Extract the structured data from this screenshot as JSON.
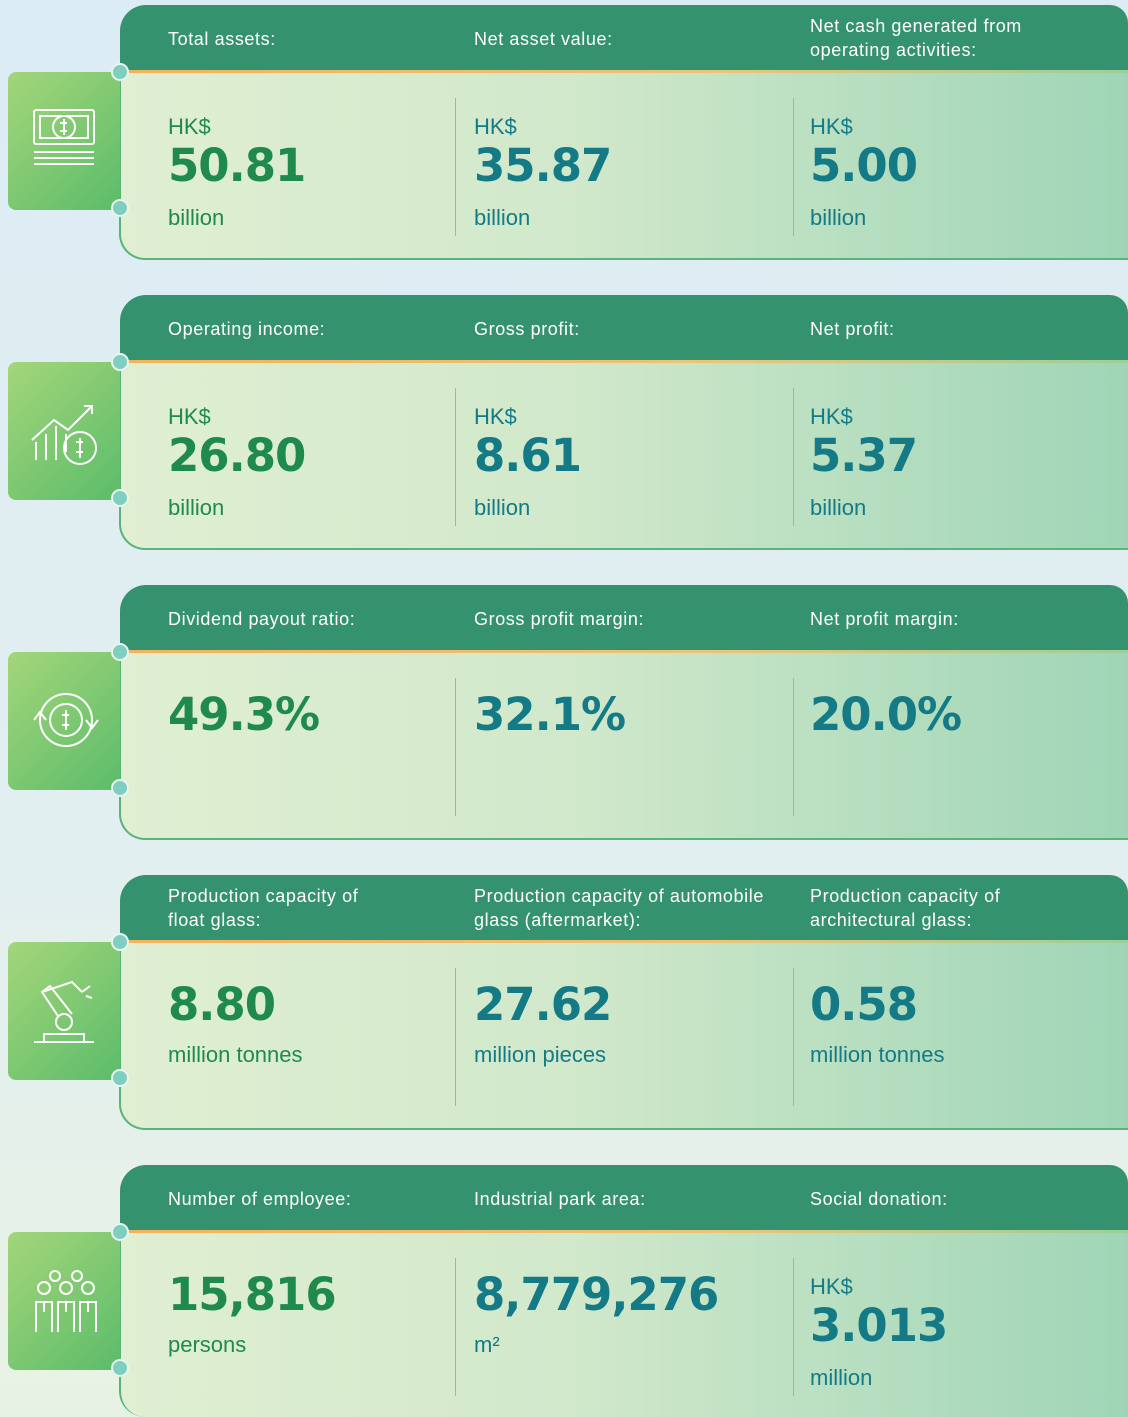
{
  "sections": [
    {
      "items": [
        {
          "label": "Total assets:",
          "prefix": "HK$",
          "value": "50.81",
          "unit": "billion"
        },
        {
          "label": "Net asset value:",
          "prefix": "HK$",
          "value": "35.87",
          "unit": "billion"
        },
        {
          "label": "Net cash generated from\noperating activities:",
          "prefix": "HK$",
          "value": "5.00",
          "unit": "billion"
        }
      ]
    },
    {
      "items": [
        {
          "label": "Operating income:",
          "prefix": "HK$",
          "value": "26.80",
          "unit": "billion"
        },
        {
          "label": "Gross profit:",
          "prefix": "HK$",
          "value": "8.61",
          "unit": "billion"
        },
        {
          "label": "Net profit:",
          "prefix": "HK$",
          "value": "5.37",
          "unit": "billion"
        }
      ]
    },
    {
      "items": [
        {
          "label": "Dividend payout ratio:",
          "value": "49.3%"
        },
        {
          "label": "Gross profit margin:",
          "value": "32.1%"
        },
        {
          "label": "Net profit margin:",
          "value": "20.0%"
        }
      ]
    },
    {
      "items": [
        {
          "label": "Production capacity of\nfloat glass:",
          "value": "8.80",
          "unit": "million tonnes"
        },
        {
          "label": "Production capacity of automobile\nglass (aftermarket):",
          "value": "27.62",
          "unit": "million pieces"
        },
        {
          "label": "Production capacity of\narchitectural glass:",
          "value": "0.58",
          "unit": "million tonnes"
        }
      ]
    },
    {
      "items": [
        {
          "label": "Number of employee:",
          "value": "15,816",
          "unit": "persons"
        },
        {
          "label": "Industrial park area:",
          "value": "8,779,276",
          "unit": "m²"
        },
        {
          "label": "Social donation:",
          "prefix": "HK$",
          "value": "3.013",
          "unit": "million"
        }
      ]
    }
  ]
}
